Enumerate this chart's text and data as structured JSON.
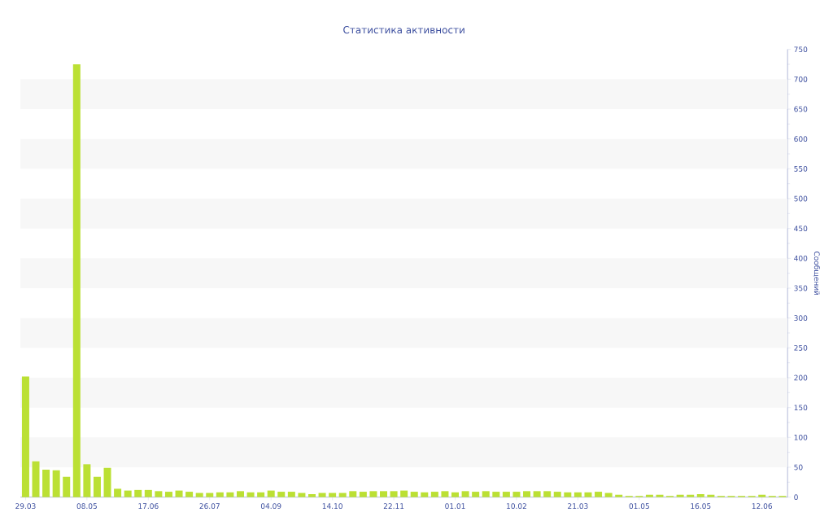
{
  "chart_data": {
    "type": "bar",
    "title": "Статистика активности",
    "ylabel": "Сообщений",
    "categories": [
      "29.03",
      null,
      null,
      null,
      null,
      null,
      "08.05",
      null,
      null,
      null,
      null,
      null,
      "17.06",
      null,
      null,
      null,
      null,
      null,
      "26.07",
      null,
      null,
      null,
      null,
      null,
      "04.09",
      null,
      null,
      null,
      null,
      null,
      "14.10",
      null,
      null,
      null,
      null,
      null,
      "22.11",
      null,
      null,
      null,
      null,
      null,
      "01.01",
      null,
      null,
      null,
      null,
      null,
      "10.02",
      null,
      null,
      null,
      null,
      null,
      "21.03",
      null,
      null,
      null,
      null,
      null,
      "01.05",
      null,
      null,
      null,
      null,
      null,
      "16.05",
      null,
      null,
      null,
      null,
      null,
      "12.06",
      null,
      null
    ],
    "values": [
      202,
      60,
      46,
      45,
      34,
      725,
      55,
      34,
      49,
      14,
      11,
      12,
      12,
      10,
      9,
      11,
      9,
      7,
      7,
      8,
      8,
      10,
      8,
      8,
      11,
      9,
      9,
      7,
      5,
      7,
      7,
      7,
      10,
      9,
      10,
      10,
      10,
      11,
      9,
      8,
      9,
      10,
      8,
      10,
      9,
      10,
      9,
      9,
      9,
      10,
      10,
      10,
      9,
      8,
      8,
      8,
      9,
      7,
      4,
      2,
      2,
      4,
      4,
      2,
      4,
      4,
      5,
      4,
      2,
      2,
      2,
      2,
      4,
      2,
      2
    ],
    "color": "#bbe034",
    "ylim": [
      0,
      750
    ],
    "yticks": [
      0,
      50,
      100,
      150,
      200,
      250,
      300,
      350,
      400,
      450,
      500,
      550,
      600,
      650,
      700,
      750
    ],
    "bands": [
      {
        "axis": "y",
        "from": 50,
        "to": 100,
        "color": "#f7f7f7"
      },
      {
        "axis": "y",
        "from": 150,
        "to": 200,
        "color": "#f7f7f7"
      },
      {
        "axis": "y",
        "from": 250,
        "to": 300,
        "color": "#f7f7f7"
      },
      {
        "axis": "y",
        "from": 350,
        "to": 400,
        "color": "#f7f7f7"
      },
      {
        "axis": "y",
        "from": 450,
        "to": 500,
        "color": "#f7f7f7"
      },
      {
        "axis": "y",
        "from": 550,
        "to": 600,
        "color": "#f7f7f7"
      },
      {
        "axis": "y",
        "from": 650,
        "to": 700,
        "color": "#f7f7f7"
      }
    ]
  }
}
